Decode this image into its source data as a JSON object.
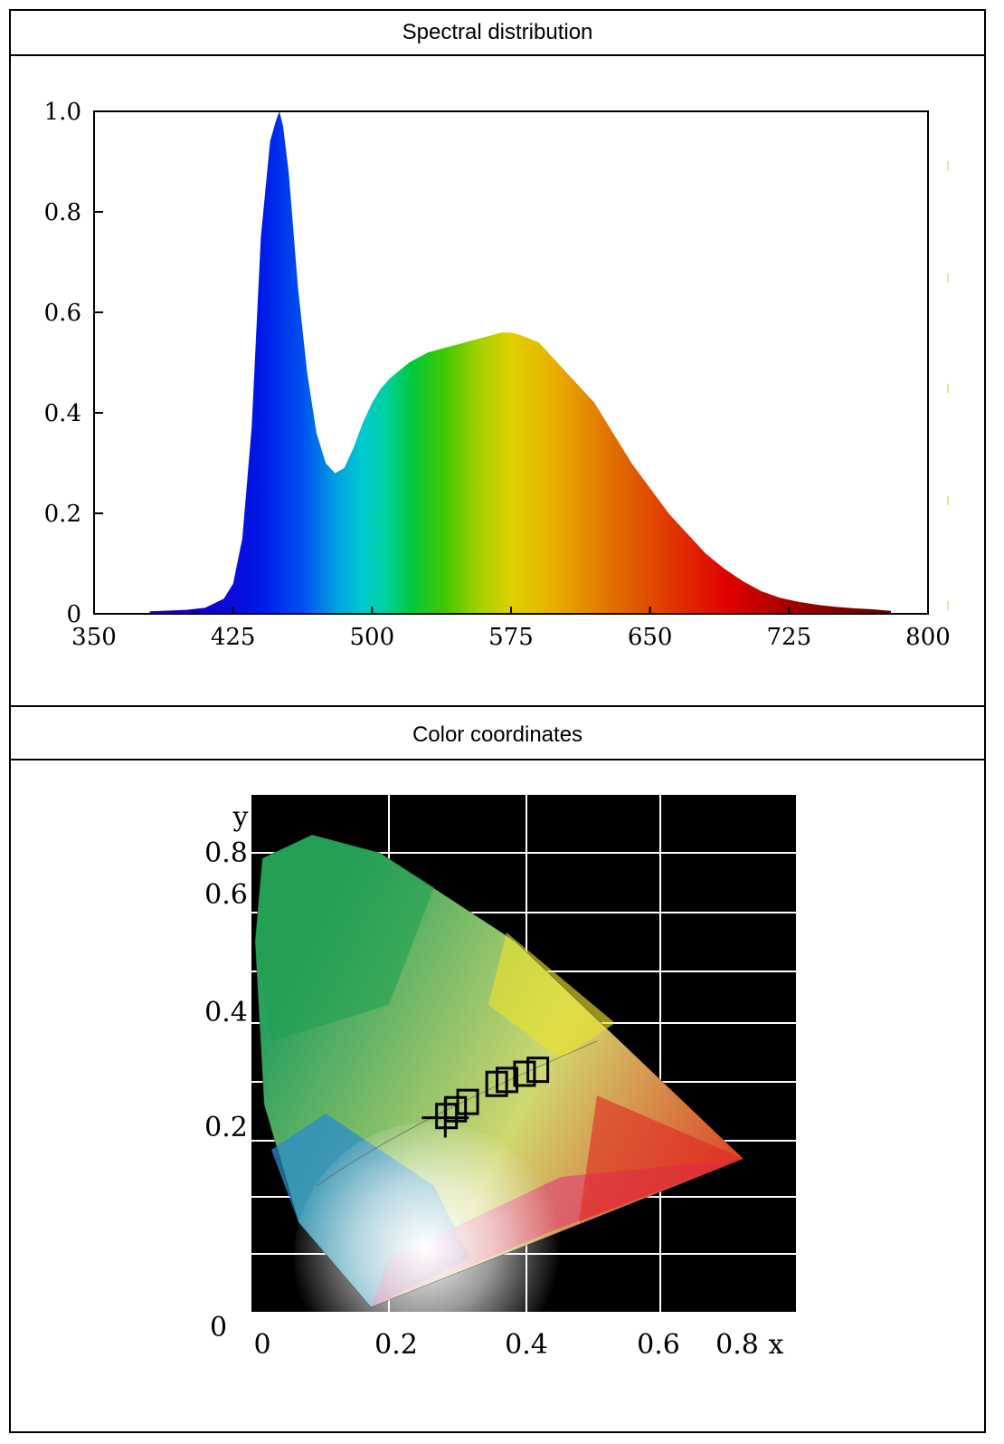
{
  "sections": {
    "spectral_title": "Spectral distribution",
    "color_title": "Color coordinates"
  },
  "chart_data": [
    {
      "type": "area",
      "title": "Spectral distribution",
      "xlabel": "",
      "ylabel": "",
      "xlim": [
        350,
        800
      ],
      "ylim": [
        0,
        1.0
      ],
      "x_ticks": [
        "350",
        "425",
        "500",
        "575",
        "650",
        "725",
        "800"
      ],
      "y_ticks": [
        "0",
        "0.2",
        "0.4",
        "0.6",
        "0.8",
        "1.0"
      ],
      "grid": false,
      "fill": "visible spectrum gradient",
      "x": [
        380,
        400,
        410,
        420,
        425,
        430,
        435,
        440,
        445,
        448,
        450,
        452,
        455,
        460,
        465,
        470,
        475,
        480,
        485,
        490,
        495,
        500,
        505,
        510,
        520,
        530,
        540,
        550,
        560,
        570,
        575,
        580,
        590,
        600,
        610,
        620,
        630,
        640,
        650,
        660,
        670,
        680,
        690,
        700,
        710,
        720,
        730,
        740,
        750,
        760,
        770,
        780
      ],
      "values": [
        0.005,
        0.008,
        0.012,
        0.03,
        0.06,
        0.15,
        0.37,
        0.75,
        0.94,
        0.98,
        1.0,
        0.97,
        0.88,
        0.65,
        0.48,
        0.36,
        0.3,
        0.28,
        0.29,
        0.33,
        0.38,
        0.42,
        0.45,
        0.47,
        0.5,
        0.52,
        0.53,
        0.54,
        0.55,
        0.56,
        0.56,
        0.555,
        0.54,
        0.5,
        0.46,
        0.42,
        0.36,
        0.3,
        0.25,
        0.2,
        0.16,
        0.12,
        0.09,
        0.065,
        0.045,
        0.032,
        0.024,
        0.018,
        0.014,
        0.011,
        0.009,
        0.006
      ]
    },
    {
      "type": "scatter",
      "title": "Color coordinates",
      "xlabel": "x",
      "ylabel": "y",
      "xlim": [
        0,
        0.8
      ],
      "ylim": [
        0,
        0.8
      ],
      "x_ticks": [
        "0",
        "0.2",
        "0.4",
        "0.6",
        "0.8"
      ],
      "y_ticks": [
        "0",
        "0.2",
        "0.4",
        "0.6",
        "0.8"
      ],
      "background": "black",
      "grid": true,
      "marker": {
        "x": 0.31,
        "y": 0.33
      },
      "boxes": [
        {
          "x": 0.312,
          "y": 0.333
        },
        {
          "x": 0.327,
          "y": 0.345
        },
        {
          "x": 0.347,
          "y": 0.358
        },
        {
          "x": 0.395,
          "y": 0.39
        },
        {
          "x": 0.412,
          "y": 0.397
        },
        {
          "x": 0.441,
          "y": 0.408
        },
        {
          "x": 0.463,
          "y": 0.415
        }
      ]
    }
  ]
}
